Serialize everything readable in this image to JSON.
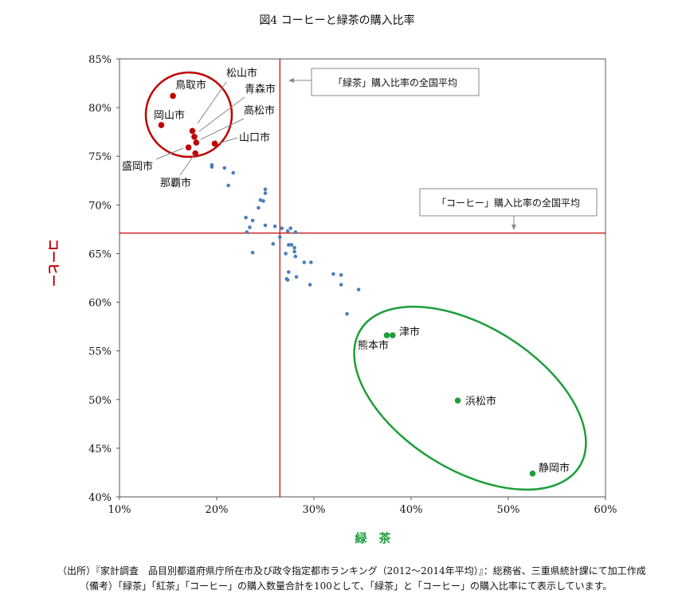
{
  "chart_data": {
    "type": "scatter",
    "title": "図4 コーヒーと緑茶の購入比率",
    "xlabel": "緑　茶",
    "ylabel": "コーヒー",
    "xlim": [
      0.1,
      0.6
    ],
    "ylim": [
      0.4,
      0.85
    ],
    "x_ticks": [
      "10%",
      "20%",
      "30%",
      "40%",
      "50%",
      "60%"
    ],
    "y_ticks": [
      "40%",
      "45%",
      "50%",
      "55%",
      "60%",
      "65%",
      "70%",
      "75%",
      "80%",
      "85%"
    ],
    "averages": {
      "green_tea": 0.265,
      "coffee": 0.671,
      "green_tea_label": "「緑茶」購入比率の全国平均",
      "coffee_label": "「コーヒー」購入比率の全国平均"
    },
    "colors": {
      "red": "#c00000",
      "green": "#1e9e3a",
      "blue": "#4a7ebb",
      "avg_line": "#c00000",
      "ellipse_red": "#c00000",
      "ellipse_green": "#1e9e3a"
    },
    "labeled_red": [
      {
        "name": "鳥取市",
        "x": 0.155,
        "y": 0.812
      },
      {
        "name": "岡山市",
        "x": 0.143,
        "y": 0.782
      },
      {
        "name": "松山市",
        "x": 0.175,
        "y": 0.776
      },
      {
        "name": "青森市",
        "x": 0.177,
        "y": 0.77
      },
      {
        "name": "高松市",
        "x": 0.179,
        "y": 0.764
      },
      {
        "name": "山口市",
        "x": 0.198,
        "y": 0.763
      },
      {
        "name": "盛岡市",
        "x": 0.171,
        "y": 0.759
      },
      {
        "name": "那覇市",
        "x": 0.178,
        "y": 0.753
      }
    ],
    "labeled_green": [
      {
        "name": "津市",
        "x": 0.381,
        "y": 0.566
      },
      {
        "name": "熊本市",
        "x": 0.375,
        "y": 0.566
      },
      {
        "name": "浜松市",
        "x": 0.448,
        "y": 0.499
      },
      {
        "name": "静岡市",
        "x": 0.525,
        "y": 0.424
      }
    ],
    "other_points": [
      [
        0.195,
        0.741
      ],
      [
        0.195,
        0.739
      ],
      [
        0.208,
        0.738
      ],
      [
        0.217,
        0.733
      ],
      [
        0.212,
        0.72
      ],
      [
        0.25,
        0.716
      ],
      [
        0.25,
        0.712
      ],
      [
        0.245,
        0.705
      ],
      [
        0.248,
        0.704
      ],
      [
        0.243,
        0.697
      ],
      [
        0.23,
        0.687
      ],
      [
        0.237,
        0.684
      ],
      [
        0.25,
        0.679
      ],
      [
        0.26,
        0.678
      ],
      [
        0.267,
        0.676
      ],
      [
        0.234,
        0.677
      ],
      [
        0.276,
        0.676
      ],
      [
        0.273,
        0.673
      ],
      [
        0.281,
        0.672
      ],
      [
        0.231,
        0.672
      ],
      [
        0.265,
        0.667
      ],
      [
        0.258,
        0.66
      ],
      [
        0.274,
        0.659
      ],
      [
        0.277,
        0.659
      ],
      [
        0.28,
        0.656
      ],
      [
        0.28,
        0.652
      ],
      [
        0.237,
        0.651
      ],
      [
        0.271,
        0.65
      ],
      [
        0.281,
        0.647
      ],
      [
        0.29,
        0.641
      ],
      [
        0.297,
        0.641
      ],
      [
        0.32,
        0.629
      ],
      [
        0.328,
        0.628
      ],
      [
        0.274,
        0.631
      ],
      [
        0.282,
        0.626
      ],
      [
        0.272,
        0.624
      ],
      [
        0.273,
        0.623
      ],
      [
        0.296,
        0.618
      ],
      [
        0.328,
        0.618
      ],
      [
        0.346,
        0.613
      ],
      [
        0.334,
        0.588
      ]
    ]
  },
  "footnotes": {
    "source": "（出所）『家計調査　品目別都道府県庁所在市及び政令指定都市ランキング（2012～2014年平均）』：総務省、三重県統計課にて加工作成",
    "note": "（備考）「緑茶」「紅茶」「コーヒー」の購入数量合計を100として、「緑茶」と「コーヒー」の購入比率にて表示しています。"
  }
}
